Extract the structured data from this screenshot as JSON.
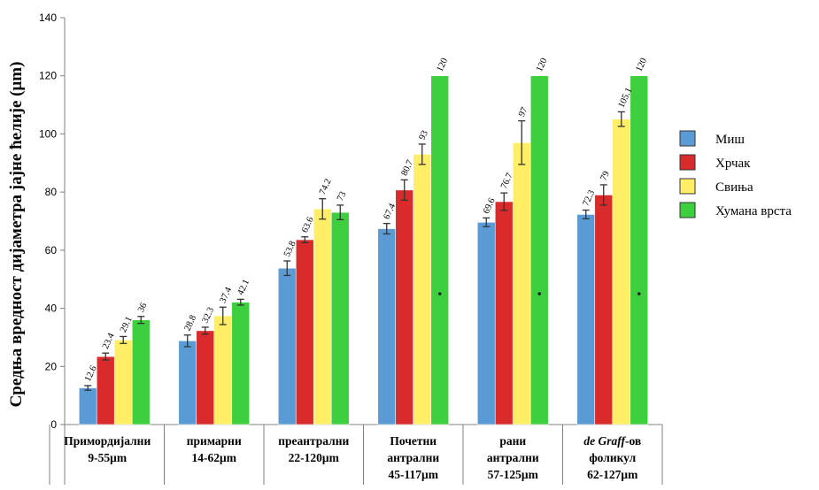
{
  "chart_data": {
    "type": "bar",
    "ylabel": "Средња вредност дијаметра јајне ћелије (μm)",
    "ylim": [
      0,
      140
    ],
    "yticks": [
      0,
      20,
      40,
      60,
      80,
      100,
      120,
      140
    ],
    "grid": false,
    "legend_position": "right",
    "categories": [
      [
        "Примордијални",
        "9-55μm"
      ],
      [
        "примарни",
        "14-62μm"
      ],
      [
        "преантрални",
        "22-120μm"
      ],
      [
        "Почетни",
        "антрални",
        "45-117μm"
      ],
      [
        "рани",
        "антрални",
        "57-125μm"
      ],
      [
        "de Graff-ов",
        "фоликул",
        "62-127μm"
      ]
    ],
    "series": [
      {
        "name": "Миш",
        "color": "#5b9bd5",
        "values": [
          12.6,
          28.8,
          53.8,
          67.4,
          69.6,
          72.3
        ],
        "errors": [
          0.8,
          2.0,
          2.5,
          1.8,
          1.5,
          1.5
        ],
        "labels": [
          "12.6",
          "28.8",
          "53.8",
          "67.4",
          "69.6",
          "72.3"
        ]
      },
      {
        "name": "Хрчак",
        "color": "#d92b2b",
        "values": [
          23.4,
          32.3,
          63.6,
          80.7,
          76.7,
          79
        ],
        "errors": [
          1.2,
          1.2,
          1.0,
          3.5,
          3.0,
          3.5
        ],
        "labels": [
          "23.4",
          "32.3",
          "63.6",
          "80.7",
          "76.7",
          "79"
        ]
      },
      {
        "name": "Свиња",
        "color": "#ffee66",
        "values": [
          29.1,
          37.4,
          74.2,
          93,
          97,
          105.1
        ],
        "errors": [
          1.2,
          3.0,
          3.5,
          3.5,
          7.5,
          2.5
        ],
        "labels": [
          "29.1",
          "37.4",
          "74.2",
          "93",
          "97",
          "105.1"
        ]
      },
      {
        "name": "Хумана врста",
        "color": "#3ecf3e",
        "values": [
          36,
          42.1,
          73,
          120,
          120,
          120
        ],
        "errors": [
          1.2,
          1.0,
          2.5,
          0,
          0,
          0
        ],
        "labels": [
          "36",
          "42.1",
          "73",
          "120",
          "120",
          "120"
        ]
      }
    ]
  }
}
